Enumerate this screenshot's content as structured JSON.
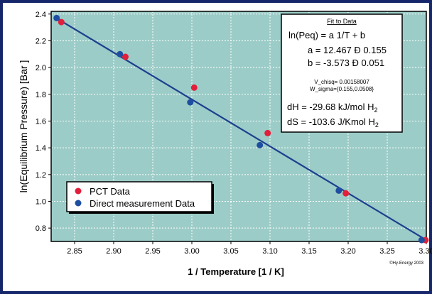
{
  "colors": {
    "background": "#1a2a6b",
    "plot_background": "#9cccc7",
    "grid": "#ffffff",
    "fit_line": "#1c3f8f",
    "pct_marker": "#e21f3a",
    "direct_marker": "#1e4ea0"
  },
  "chart_data": {
    "type": "scatter",
    "xlabel": "1 / Temperature   [1 / K]",
    "ylabel": "ln(Equilibrium Pressure) [Bar ]",
    "xlim": [
      2.82,
      3.3
    ],
    "ylim": [
      0.7,
      2.42
    ],
    "x_ticks": [
      "2.85",
      "2.90",
      "2.95",
      "3.00",
      "3.05",
      "3.10",
      "3.15",
      "3.20",
      "3.25",
      "3.30"
    ],
    "x_tick_values": [
      2.85,
      2.9,
      2.95,
      3.0,
      3.05,
      3.1,
      3.15,
      3.2,
      3.25,
      3.3
    ],
    "y_ticks": [
      "0.8",
      "1.0",
      "1.2",
      "1.4",
      "1.6",
      "1.8",
      "2.0",
      "2.2",
      "2.4"
    ],
    "y_tick_values": [
      0.8,
      1.0,
      1.2,
      1.4,
      1.6,
      1.8,
      2.0,
      2.2,
      2.4
    ],
    "grid": true,
    "legend_position": "bottom-left",
    "series": [
      {
        "name": "PCT Data",
        "x": [
          2.833,
          2.915,
          3.003,
          3.097,
          3.197,
          3.299
        ],
        "y": [
          2.34,
          2.08,
          1.85,
          1.51,
          1.06,
          0.71
        ]
      },
      {
        "name": "Direct measurement Data",
        "x": [
          2.827,
          2.908,
          2.998,
          3.087,
          3.188,
          3.294
        ],
        "y": [
          2.37,
          2.1,
          1.74,
          1.42,
          1.08,
          0.71
        ]
      }
    ],
    "fit_line": {
      "x": [
        2.825,
        3.3
      ],
      "y": [
        2.375,
        0.71
      ]
    },
    "annotation": {
      "title": "Fit to Data",
      "equation": "ln(Peq)  =  a 1/T +  b",
      "a_line": "a = 12.467 Ð 0.155",
      "b_line": "b =  -3.573 Ð 0.051",
      "chisq_line": "V_chisq= 0.00158007",
      "sigma_line": "W_sigma={0.155,0.0508}",
      "dh_line": "dH =  -29.68 kJ/mol H",
      "ds_line": "dS = -103.6 J/Kmol H",
      "subscript": "2"
    },
    "credit": "©Hy-Energy 2003"
  }
}
